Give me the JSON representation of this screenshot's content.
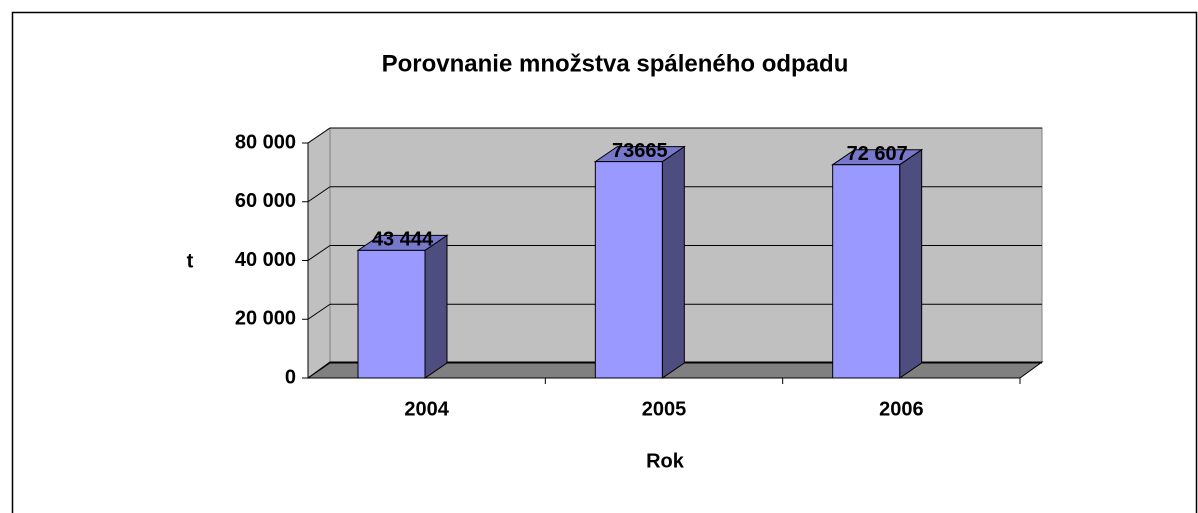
{
  "chart_data": {
    "type": "bar3d",
    "title": "Porovnanie množstva spáleného odpadu",
    "categories": [
      "2004",
      "2005",
      "2006"
    ],
    "values": [
      43444,
      73665,
      72607
    ],
    "value_labels": [
      "43 444",
      "73665",
      "72 607"
    ],
    "color": "#9999ff",
    "xlabel": "Rok",
    "ylabel": "t",
    "ylim": [
      0,
      80000
    ],
    "yticks": [
      0,
      {
        "value": 20000,
        "label": "20 000"
      },
      {
        "value": 40000,
        "label": "40 000"
      },
      {
        "value": 60000,
        "label": "60 000"
      },
      {
        "value": 80000,
        "label": "80 000"
      }
    ],
    "grid": true
  }
}
